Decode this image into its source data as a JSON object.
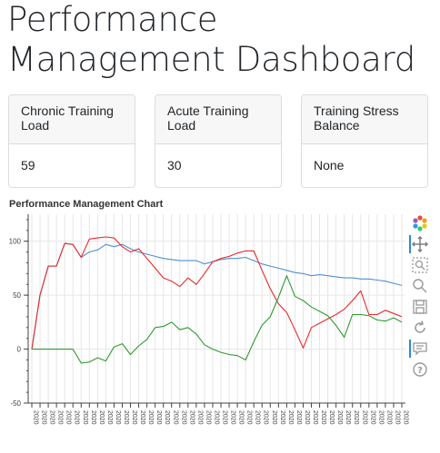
{
  "page": {
    "title": "Performance Management Dashboard"
  },
  "cards": [
    {
      "label": "Chronic Training Load",
      "value": "59"
    },
    {
      "label": "Acute Training Load",
      "value": "30"
    },
    {
      "label": "Training Stress Balance",
      "value": "None"
    }
  ],
  "chart_title": "Performance Management Chart",
  "toolbar": {
    "icons": [
      "bokeh-logo-icon",
      "pan-icon",
      "box-zoom-icon",
      "wheel-zoom-icon",
      "save-icon",
      "reset-icon",
      "hover-icon",
      "help-icon"
    ]
  },
  "colors": {
    "ctl": "#4f8fcf",
    "atl": "#e8292a",
    "tsb": "#2e9a2e"
  },
  "chart_data": {
    "type": "line",
    "title": "Performance Management Chart",
    "xlabel": "",
    "ylabel": "",
    "x_tick_label": "2020",
    "x_tick_count": 46,
    "ylim": [
      -50,
      125
    ],
    "yticks": [
      -50,
      0,
      50,
      100
    ],
    "grid": true,
    "series": [
      {
        "color": "#4f8fcf",
        "values": [
          0,
          50,
          77,
          77,
          98,
          97,
          85,
          90,
          92,
          97,
          95,
          97,
          93,
          90,
          88,
          86,
          84,
          83,
          82,
          82,
          82,
          79,
          81,
          83,
          84,
          84,
          85,
          82,
          79,
          77,
          75,
          73,
          71,
          70,
          68,
          69,
          68,
          67,
          66,
          66,
          65,
          65,
          64,
          63,
          61,
          59
        ]
      },
      {
        "color": "#e8292a",
        "values": [
          0,
          50,
          77,
          77,
          98,
          97,
          85,
          102,
          103,
          104,
          103,
          95,
          90,
          93,
          84,
          75,
          66,
          63,
          58,
          66,
          60,
          70,
          81,
          84,
          86,
          89,
          91,
          91,
          73,
          56,
          42,
          34,
          18,
          1,
          20,
          24,
          28,
          32,
          37,
          45,
          54,
          32,
          32,
          36,
          33,
          30
        ]
      },
      {
        "color": "#2e9a2e",
        "values": [
          0,
          0,
          0,
          0,
          0,
          0,
          -13,
          -12,
          -8,
          -11,
          2,
          5,
          -5,
          3,
          9,
          20,
          21,
          25,
          18,
          20,
          14,
          4,
          0,
          -3,
          -5,
          -6,
          -10,
          7,
          22,
          30,
          48,
          68,
          49,
          45,
          39,
          35,
          31,
          22,
          11,
          32,
          32,
          31,
          27,
          26,
          29,
          25
        ]
      }
    ]
  }
}
